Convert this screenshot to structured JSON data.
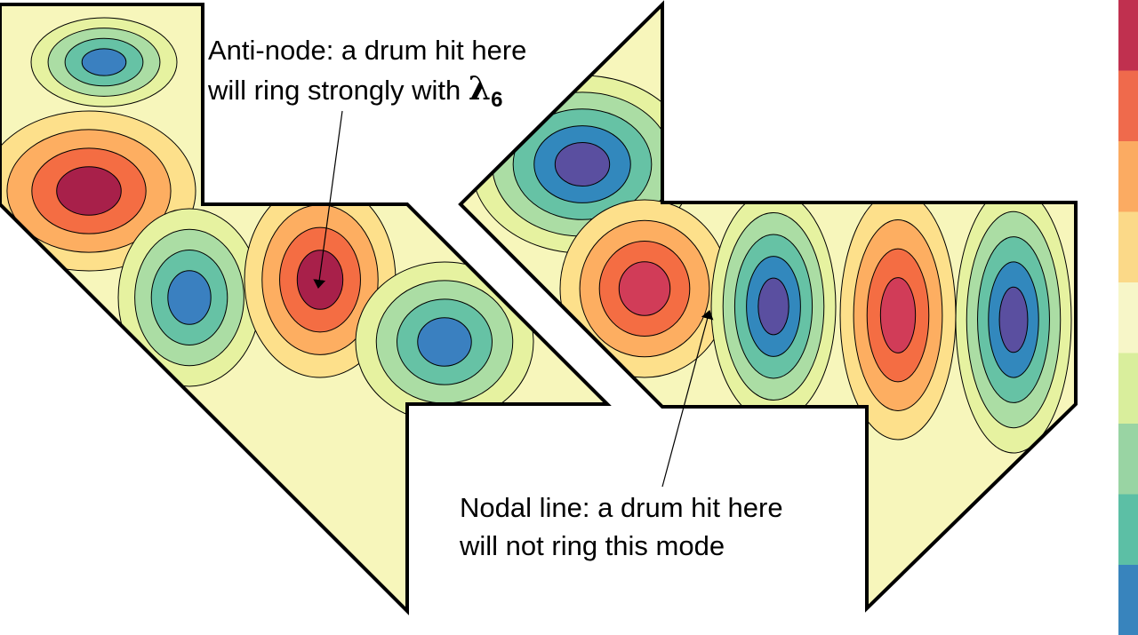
{
  "annotations": {
    "anti_node": {
      "line1": "Anti-node: a drum hit here",
      "line2": "will ring strongly with",
      "symbol": "λ",
      "subscript": "6"
    },
    "nodal_line": {
      "line1": "Nodal line: a drum hit here",
      "line2": "will not ring this mode"
    }
  }
}
